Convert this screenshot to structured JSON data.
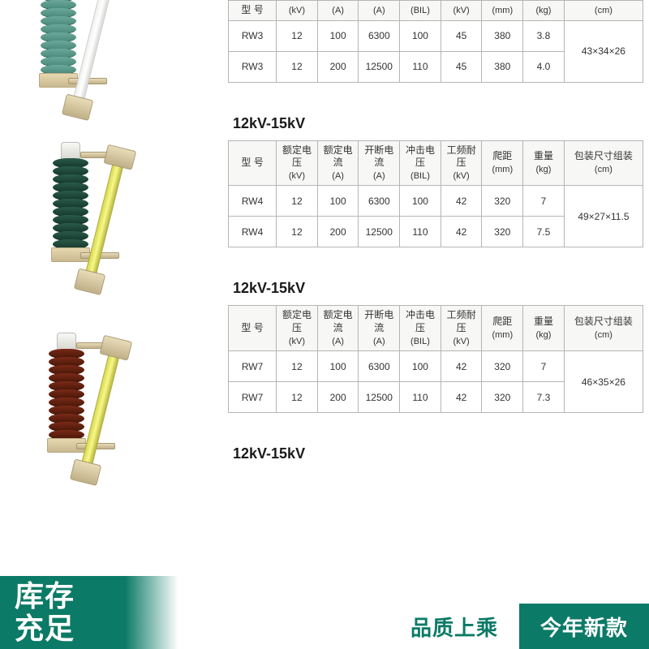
{
  "colors": {
    "brand_green": "#0b7a66",
    "border_gray": "#b5b5b5",
    "background": "#ffffff",
    "text": "#333333",
    "insulator_teal": "#4a8a7c",
    "insulator_green": "#163a2e",
    "insulator_brown": "#4a1808",
    "tube_white": "#f0f0ee",
    "tube_yellow": "#e8e868",
    "brass": "#c8b890"
  },
  "headers": {
    "model": "型 号",
    "rated_voltage": "额定电压",
    "rated_voltage_unit": "(kV)",
    "rated_current": "额定电流",
    "rated_current_unit": "(A)",
    "breaking_current": "开断电流",
    "breaking_current_unit": "(A)",
    "impulse": "冲击电压",
    "impulse_unit": "(BIL)",
    "pf_withstand": "工频耐压",
    "pf_withstand_unit": "(kV)",
    "creepage": "爬距",
    "creepage_unit": "(mm)",
    "weight": "重量",
    "weight_unit": "(kg)",
    "package": "包装尺寸组装",
    "package_unit": "(cm)"
  },
  "sections": [
    {
      "title": "",
      "rows": [
        {
          "model": "RW3",
          "rv": "12",
          "rc": "100",
          "bc": "6300",
          "imp": "100",
          "pf": "45",
          "creep": "380",
          "wt": "3.8"
        },
        {
          "model": "RW3",
          "rv": "12",
          "rc": "200",
          "bc": "12500",
          "imp": "110",
          "pf": "45",
          "creep": "380",
          "wt": "4.0"
        }
      ],
      "package": "43×34×26"
    },
    {
      "title": "12kV-15kV",
      "rows": [
        {
          "model": "RW4",
          "rv": "12",
          "rc": "100",
          "bc": "6300",
          "imp": "100",
          "pf": "42",
          "creep": "320",
          "wt": "7"
        },
        {
          "model": "RW4",
          "rv": "12",
          "rc": "200",
          "bc": "12500",
          "imp": "110",
          "pf": "42",
          "creep": "320",
          "wt": "7.5"
        }
      ],
      "package": "49×27×11.5"
    },
    {
      "title": "12kV-15kV",
      "rows": [
        {
          "model": "RW7",
          "rv": "12",
          "rc": "100",
          "bc": "6300",
          "imp": "100",
          "pf": "42",
          "creep": "320",
          "wt": "7"
        },
        {
          "model": "RW7",
          "rv": "12",
          "rc": "200",
          "bc": "12500",
          "imp": "110",
          "pf": "42",
          "creep": "320",
          "wt": "7.3"
        }
      ],
      "package": "46×35×26"
    },
    {
      "title": "12kV-15kV",
      "rows": [],
      "package": ""
    }
  ],
  "overlay": {
    "stock_line1": "库存",
    "stock_line2": "充足",
    "quality": "品质上乘",
    "new_style": "今年新款"
  }
}
